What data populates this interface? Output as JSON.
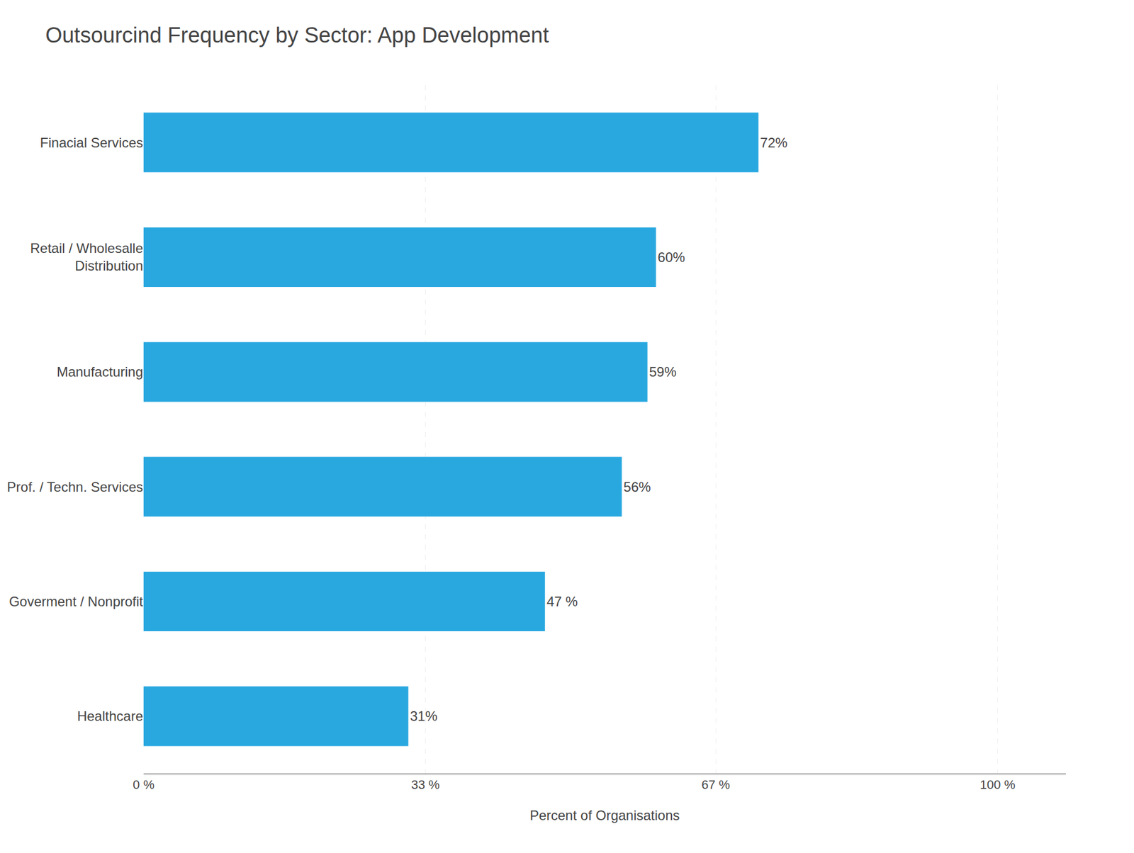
{
  "chart_data": {
    "type": "bar",
    "orientation": "horizontal",
    "title": "Outsourcind Frequency by Sector: App Development",
    "categories": [
      "Healthcare",
      "Goverment / Nonprofit",
      "Prof. / Techn. Services",
      "Manufacturing",
      "Retail / Wholesalle\nDistribution",
      "Finacial Services"
    ],
    "values": [
      31,
      47,
      56,
      59,
      60,
      72
    ],
    "value_labels": [
      "31%",
      "47 %",
      "56%",
      "59%",
      "60%",
      "72%"
    ],
    "data_labels": true,
    "color": "#29a8e0",
    "xlabel": "Percent of Organisations",
    "xlim": [
      0,
      108
    ],
    "xticks": [
      {
        "value": 0,
        "label": "0 %"
      },
      {
        "value": 33,
        "label": "33 %"
      },
      {
        "value": 67,
        "label": "67 %"
      },
      {
        "value": 100,
        "label": "100 %"
      }
    ],
    "grid": true
  }
}
